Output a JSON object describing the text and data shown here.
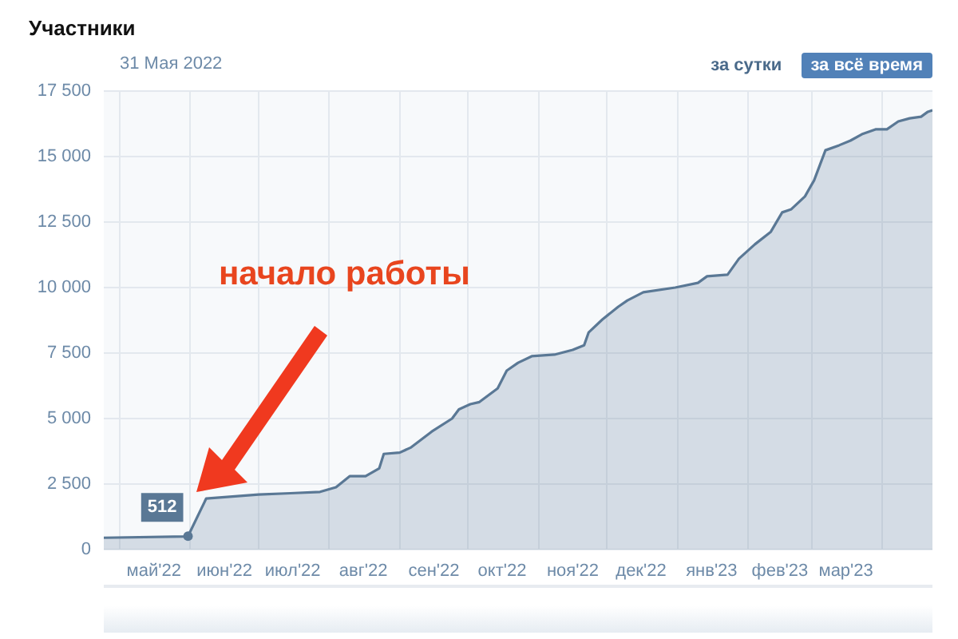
{
  "chart_data": {
    "type": "area",
    "title": "Участники",
    "x": [
      "2022-04-24",
      "2022-05-30",
      "2022-05-31",
      "2022-06-08",
      "2022-07-01",
      "2022-07-15",
      "2022-07-28",
      "2022-08-04",
      "2022-08-10",
      "2022-08-17",
      "2022-08-23",
      "2022-08-25",
      "2022-09-01",
      "2022-09-06",
      "2022-09-15",
      "2022-09-24",
      "2022-09-27",
      "2022-10-02",
      "2022-10-06",
      "2022-10-14",
      "2022-10-18",
      "2022-10-23",
      "2022-10-29",
      "2022-11-08",
      "2022-11-16",
      "2022-11-21",
      "2022-11-23",
      "2022-11-29",
      "2022-12-06",
      "2022-12-10",
      "2022-12-17",
      "2022-12-31",
      "2023-01-10",
      "2023-01-14",
      "2023-01-23",
      "2023-01-28",
      "2023-02-04",
      "2023-02-11",
      "2023-02-16",
      "2023-02-20",
      "2023-02-26",
      "2023-03-02",
      "2023-03-07",
      "2023-03-13",
      "2023-03-18",
      "2023-03-23",
      "2023-03-29",
      "2023-04-03",
      "2023-04-08",
      "2023-04-13",
      "2023-04-18",
      "2023-04-21",
      "2023-04-23"
    ],
    "series": [
      {
        "color": "#5a7895",
        "values": [
          450,
          500,
          512,
          1950,
          2100,
          2150,
          2200,
          2380,
          2800,
          2800,
          3100,
          3650,
          3700,
          3900,
          4500,
          5000,
          5350,
          5550,
          5630,
          6150,
          6830,
          7130,
          7380,
          7440,
          7620,
          7800,
          8290,
          8780,
          9270,
          9510,
          9820,
          10000,
          10180,
          10430,
          10490,
          11100,
          11650,
          12130,
          12870,
          12990,
          13480,
          14090,
          15240,
          15430,
          15610,
          15850,
          16040,
          16040,
          16340,
          16460,
          16520,
          16710,
          16770
        ]
      }
    ],
    "xlim": [
      "2022-04-24",
      "2023-04-23"
    ],
    "xticks": [
      {
        "value": "2022-05-01",
        "label": null
      },
      {
        "value": "2022-05-16",
        "label": "май'22"
      },
      {
        "value": "2022-06-01",
        "label": null
      },
      {
        "value": "2022-06-16",
        "label": "июн'22"
      },
      {
        "value": "2022-07-01",
        "label": null
      },
      {
        "value": "2022-07-16",
        "label": "июл'22"
      },
      {
        "value": "2022-08-01",
        "label": null
      },
      {
        "value": "2022-08-16",
        "label": "авг'22"
      },
      {
        "value": "2022-09-01",
        "label": null
      },
      {
        "value": "2022-09-16",
        "label": "сен'22"
      },
      {
        "value": "2022-10-01",
        "label": null
      },
      {
        "value": "2022-10-16",
        "label": "окт'22"
      },
      {
        "value": "2022-11-01",
        "label": null
      },
      {
        "value": "2022-11-16",
        "label": "ноя'22"
      },
      {
        "value": "2022-12-01",
        "label": null
      },
      {
        "value": "2022-12-16",
        "label": "дек'22"
      },
      {
        "value": "2023-01-01",
        "label": null
      },
      {
        "value": "2023-01-16",
        "label": "янв'23"
      },
      {
        "value": "2023-02-01",
        "label": null
      },
      {
        "value": "2023-02-15",
        "label": "фев'23"
      },
      {
        "value": "2023-03-01",
        "label": null
      },
      {
        "value": "2023-03-16",
        "label": "мар'23"
      },
      {
        "value": "2023-04-01",
        "label": null
      }
    ],
    "ylim": [
      0,
      17500
    ],
    "yticks": [
      0,
      {
        "value": 2500,
        "label": "2 500"
      },
      {
        "value": 5000,
        "label": "5 000"
      },
      {
        "value": 7500,
        "label": "7 500"
      },
      {
        "value": 10000,
        "label": "10 000"
      },
      {
        "value": 12500,
        "label": "12 500"
      },
      {
        "value": 15000,
        "label": "15 000"
      },
      {
        "value": 17500,
        "label": "17 500"
      }
    ],
    "grid": true,
    "annotations": [
      "31 Мая 2022",
      "за сутки",
      "за всё время",
      {
        "text": "512",
        "x": "2022-05-31",
        "y": 512
      },
      "начало работы"
    ]
  }
}
